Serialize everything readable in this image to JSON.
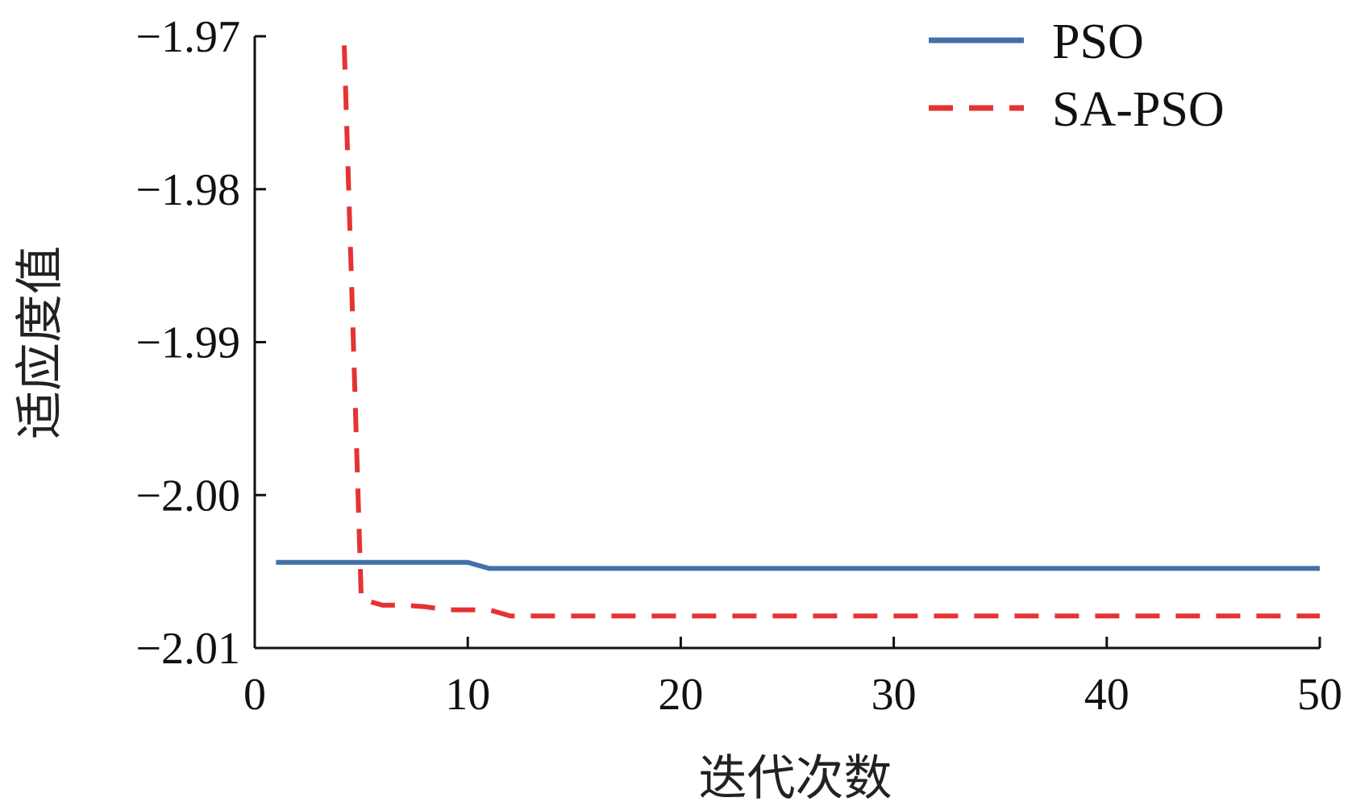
{
  "chart_data": {
    "type": "line",
    "title": "",
    "xlabel": "迭代次数",
    "ylabel": "适应度值",
    "xlim": [
      0,
      50
    ],
    "ylim": [
      -2.01,
      -1.97
    ],
    "x_ticks": [
      0,
      10,
      20,
      30,
      40,
      50
    ],
    "x_tick_labels": [
      "0",
      "10",
      "20",
      "30",
      "40",
      "50"
    ],
    "y_ticks": [
      -1.97,
      -1.98,
      -1.99,
      -2.0,
      -2.01
    ],
    "y_tick_labels": [
      "−1.97",
      "−1.98",
      "−1.99",
      "−2.00",
      "−2.01"
    ],
    "grid": false,
    "legend_position": "top-right",
    "series": [
      {
        "name": "PSO",
        "color": "#4470a8",
        "style": "solid",
        "x": [
          1,
          10,
          11,
          50
        ],
        "y": [
          -2.0044,
          -2.0044,
          -2.0048,
          -2.0048
        ]
      },
      {
        "name": "SA-PSO",
        "color": "#e53333",
        "style": "dashed",
        "x": [
          4.2,
          5,
          6,
          7,
          8,
          9,
          10,
          11,
          12,
          50
        ],
        "y": [
          -1.9706,
          -2.0068,
          -2.0072,
          -2.0072,
          -2.0073,
          -2.0075,
          -2.0075,
          -2.0075,
          -2.0079,
          -2.0079
        ]
      }
    ]
  }
}
